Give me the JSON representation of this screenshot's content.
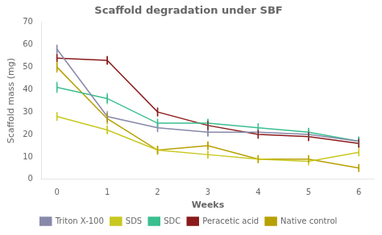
{
  "chart_data": {
    "type": "line",
    "title": "Scaffold degradation under SBF",
    "xlabel": "Weeks",
    "ylabel": "Scaffold mass (mg)",
    "x": [
      0,
      1,
      2,
      3,
      4,
      5,
      6
    ],
    "xlim": [
      -0.3,
      6.3
    ],
    "xticks": [
      0,
      1,
      2,
      3,
      4,
      5,
      6
    ],
    "ylim": [
      0,
      70
    ],
    "yticks": [
      0,
      10,
      20,
      30,
      40,
      50,
      60,
      70
    ],
    "grid": false,
    "legend": "bottom",
    "marker": "vline",
    "series": [
      {
        "name": "Triton X-100",
        "color": "#8888aa",
        "values": [
          58,
          28,
          23,
          21,
          21,
          20,
          17
        ],
        "errors": [
          2.0,
          2.5,
          2.0,
          2.0,
          2.0,
          2.0,
          2.0
        ]
      },
      {
        "name": "SDS",
        "color": "#c8c820",
        "values": [
          28,
          22,
          13,
          11,
          9,
          8,
          12
        ],
        "errors": [
          2.0,
          2.0,
          1.5,
          1.5,
          1.0,
          1.0,
          1.0
        ]
      },
      {
        "name": "SDC",
        "color": "#3abf8f",
        "values": [
          41,
          36,
          25,
          25,
          23,
          21,
          17
        ],
        "errors": [
          2.5,
          2.5,
          2.0,
          2.0,
          2.0,
          2.0,
          2.0
        ]
      },
      {
        "name": "Peracetic acid",
        "color": "#8b1a1a",
        "values": [
          54,
          53,
          30,
          24,
          20,
          19,
          16
        ],
        "errors": [
          2.0,
          2.0,
          2.0,
          2.0,
          2.0,
          2.0,
          2.0
        ]
      },
      {
        "name": "Native control",
        "color": "#b8a000",
        "values": [
          50,
          27,
          13,
          15,
          9,
          9,
          5
        ],
        "errors": [
          2.5,
          2.5,
          2.0,
          2.0,
          1.5,
          1.5,
          1.5
        ]
      }
    ]
  }
}
